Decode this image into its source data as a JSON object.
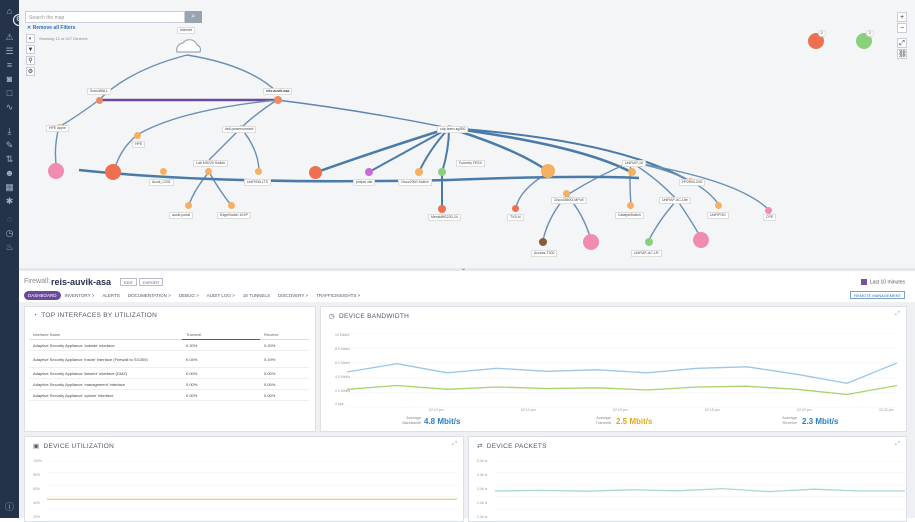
{
  "map": {
    "search_placeholder": "Search the map",
    "remove_filters": "Remove all Filters",
    "showing": "Showing 12 of 417 Devices",
    "nodes": {
      "internet": "Internet",
      "sonicwall": "SonicWALL",
      "reis_auvik_asa": "reis-auvik-asa",
      "hpe_apple": "HPE Apple",
      "hp_ap": "HPE",
      "dell_powerconnect": "dell-powerconnect",
      "cisco_sg": "cdp-learn-sg300",
      "lab_ms220": "Lab MS220 Switch",
      "auvik_c201": "Auvik_C201",
      "unifi_switch": "UniFiSW-LTS",
      "juniper": "juniper-lab",
      "cisco_ws": "Cisco2900 Switch",
      "foundry": "Foundry FESX",
      "meraki_lab": "MerakiMS220-24",
      "unifiap": "UniFiAP-16",
      "auvik_portal": "auvik-portal",
      "edge_switch": "EdgeSwitch 10XP",
      "hpe_2800": "HP2800-24G",
      "tvs": "TVS-N",
      "cisco3560": "Cisco3560G-MPoE",
      "catalyst": "CatalystSwitch",
      "unifi_ap_ac": "UniFiAP-AC-Lite",
      "unifi_pod": "UniFiPOD",
      "cpe": "CPE",
      "access": "Access-T200",
      "unifi_lr": "UniFiAP-AC-LR",
      "bubble_a": "2",
      "bubble_b": "2"
    }
  },
  "header": {
    "type_label": "Firewall:",
    "name": "reis-auvik-asa",
    "edit": "EDIT",
    "export": "EXPORT",
    "last": "Last 10 minutes",
    "remote": "REMOTE MANAGEMENT",
    "tabs": [
      "DASHBOARD",
      "INVENTORY >",
      "ALERTS",
      "DOCUMENTATION >",
      "DEBUG >",
      "AUDIT LOG >",
      "18 TUNNELS",
      "DISCOVERY >",
      "TRAFFICINSIGHTS >"
    ]
  },
  "top_interfaces": {
    "title": "TOP INTERFACES BY UTILIZATION",
    "cols": [
      "Interface Name",
      "Transmit",
      "Receive"
    ],
    "rows": [
      [
        "Adaptive Security Appliance 'outside' interface",
        "0.20%",
        "0.20%"
      ],
      [
        "Adaptive Security Appliance 'inside' interface (Firewall to SG300)",
        "0.04%",
        "0.19%"
      ],
      [
        "Adaptive Security Appliance 'labdmz' interface (DMZ)",
        "0.00%",
        "0.00%"
      ],
      [
        "Adaptive Security Appliance 'management' interface",
        "0.00%",
        "0.00%"
      ],
      [
        "Adaptive Security Appliance 'cplane' interface",
        "0.00%",
        "0.00%"
      ]
    ]
  },
  "bandwidth": {
    "title": "DEVICE BANDWIDTH",
    "yticks": [
      "10 Mbit/s",
      "8.0 Mbit/s",
      "6.0 Mbit/s",
      "4.0 Mbit/s",
      "2.0 Mbit/s",
      "0 bps"
    ],
    "xticks": [
      "02:12 pm",
      "02:14 pm",
      "02:16 pm",
      "02:18 pm",
      "02:20 pm",
      "02:22 pm"
    ],
    "avg_bw_label": "Average Bandwidth",
    "avg_bw": "4.8 Mbit/s",
    "avg_tx_label": "Average Transmit",
    "avg_tx": "2.5 Mbit/s",
    "avg_rx_label": "Average Receive",
    "avg_rx": "2.3 Mbit/s"
  },
  "utilization": {
    "title": "DEVICE UTILIZATION",
    "yticks": [
      "100%",
      "80%",
      "60%",
      "40%",
      "20%"
    ]
  },
  "packets": {
    "title": "DEVICE PACKETS",
    "yticks": [
      "5.0k /s",
      "4.0k /s",
      "3.0k /s",
      "2.0k /s",
      "1.0k /s"
    ]
  },
  "chart_data": [
    {
      "type": "line",
      "title": "DEVICE BANDWIDTH",
      "ylabel": "",
      "ylim": [
        0,
        10
      ],
      "x": [
        "02:11 pm",
        "02:12 pm",
        "02:13 pm",
        "02:14 pm",
        "02:15 pm",
        "02:16 pm",
        "02:17 pm",
        "02:18 pm",
        "02:19 pm",
        "02:20 pm",
        "02:21 pm",
        "02:22 pm"
      ],
      "series": [
        {
          "values": [
            4.8,
            5.9,
            4.7,
            5.3,
            4.9,
            5.1,
            4.7,
            5.3,
            5.5,
            4.5,
            3.3,
            6.0
          ]
        },
        {
          "values": [
            2.5,
            3.0,
            2.5,
            2.8,
            2.6,
            2.7,
            2.4,
            2.8,
            2.9,
            2.5,
            1.8,
            3.0
          ]
        }
      ]
    },
    {
      "type": "line",
      "title": "DEVICE UTILIZATION",
      "ylim": [
        0,
        100
      ],
      "series": [
        {
          "values": [
            36,
            36,
            36,
            36,
            36,
            36,
            36,
            36,
            36,
            36
          ]
        }
      ]
    },
    {
      "type": "line",
      "title": "DEVICE PACKETS",
      "ylim": [
        0,
        5000
      ],
      "series": [
        {
          "values": [
            2500,
            2550,
            2480,
            2600,
            2520,
            2700,
            2450,
            2650,
            2500,
            2500
          ]
        }
      ]
    }
  ]
}
